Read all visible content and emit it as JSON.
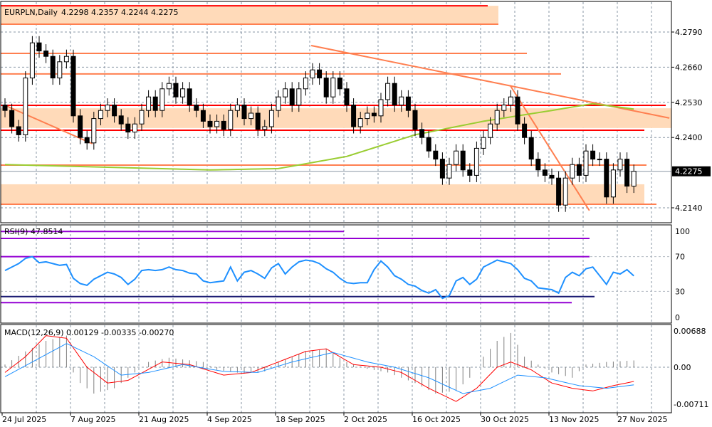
{
  "header": {
    "symbol": "EURPLN,Daily",
    "ohlc_text": "4.2298 4.2357 4.2244 4.2275"
  },
  "chart_data": [
    {
      "type": "candlestick",
      "title": "EURPLN,Daily",
      "y_ticks": [
        "4.2790",
        "4.2660",
        "4.2530",
        "4.2400",
        "4.2140"
      ],
      "ylim": [
        4.2078,
        4.2905
      ],
      "current_price": "4.2275",
      "x_labels": [
        "24 Jul 2025",
        "7 Aug 2025",
        "21 Aug 2025",
        "4 Sep 2025",
        "18 Sep 2025",
        "2 Oct 2025",
        "16 Oct 2025",
        "30 Oct 2025",
        "13 Nov 2025",
        "27 Nov 2025"
      ],
      "close": [
        4.25,
        4.244,
        4.241,
        4.262,
        4.275,
        4.272,
        4.27,
        4.262,
        4.268,
        4.27,
        4.248,
        4.24,
        4.238,
        4.247,
        4.25,
        4.252,
        4.248,
        4.245,
        4.242,
        4.245,
        4.25,
        4.255,
        4.25,
        4.258,
        4.26,
        4.255,
        4.258,
        4.252,
        4.25,
        4.246,
        4.244,
        4.246,
        4.243,
        4.25,
        4.252,
        4.247,
        4.249,
        4.243,
        4.244,
        4.25,
        4.255,
        4.258,
        4.252,
        4.258,
        4.262,
        4.265,
        4.262,
        4.255,
        4.262,
        4.258,
        4.252,
        4.244,
        4.247,
        4.249,
        4.248,
        4.254,
        4.26,
        4.252,
        4.255,
        4.25,
        4.243,
        4.24,
        4.235,
        4.232,
        4.225,
        4.23,
        4.235,
        4.228,
        4.226,
        4.236,
        4.24,
        4.245,
        4.25,
        4.252,
        4.255,
        4.245,
        4.24,
        4.232,
        4.228,
        4.226,
        4.225,
        4.215,
        4.225,
        4.23,
        4.226,
        4.235,
        4.232,
        4.232,
        4.218,
        4.228,
        4.232,
        4.222,
        4.2275
      ],
      "moving_average": [
        [
          0,
          4.23
        ],
        [
          30,
          4.228
        ],
        [
          40,
          4.2285
        ],
        [
          50,
          4.233
        ],
        [
          60,
          4.241
        ],
        [
          70,
          4.246
        ],
        [
          80,
          4.25
        ],
        [
          86,
          4.2525
        ],
        [
          92,
          4.2505
        ]
      ],
      "levels": [
        {
          "price": 4.2887,
          "color": "#ff0000"
        },
        {
          "price": 4.2819,
          "color": "#ff7f50"
        },
        {
          "price": 4.2711,
          "color": "#ff7f50"
        },
        {
          "price": 4.2635,
          "color": "#ff7f50"
        },
        {
          "price": 4.2519,
          "color": "#ff0000"
        },
        {
          "price": 4.2427,
          "color": "#ff0000"
        },
        {
          "price": 4.2298,
          "color": "#ff7f50"
        },
        {
          "price": 4.2153,
          "color": "#ff7f50"
        }
      ],
      "zones": [
        {
          "from": 4.2819,
          "to": 4.2887,
          "color": "#ffdab9"
        },
        {
          "from": 4.2435,
          "to": 4.2508,
          "color": "#ffdab9"
        },
        {
          "from": 4.2153,
          "to": 4.2227,
          "color": "#ffdab9"
        }
      ],
      "trendlines": [
        {
          "from": [
            0,
            4.2519
          ],
          "to": [
            12.8,
            4.2377
          ],
          "color": "#ff7f50"
        },
        {
          "from": [
            44.8,
            4.274
          ],
          "to": [
            97.2,
            4.2472
          ],
          "color": "#ff7f50"
        },
        {
          "from": [
            73.9,
            4.2593
          ],
          "to": [
            85.5,
            4.213
          ],
          "color": "#ff7f50"
        }
      ],
      "colors": {
        "ma": "#9acd32",
        "bull_body": "#ffffff",
        "bear_body": "#000000",
        "grid": "#708090"
      }
    },
    {
      "type": "line",
      "title": "RSI(9) 47.8514",
      "ylim": [
        0,
        100
      ],
      "y_ticks": [
        "100",
        "70",
        "30",
        "0"
      ],
      "values": [
        54,
        58,
        62,
        68,
        70,
        63,
        64,
        62,
        60,
        61,
        45,
        39,
        37,
        44,
        48,
        52,
        50,
        46,
        38,
        44,
        54,
        55,
        54,
        55,
        58,
        55,
        54,
        51,
        50,
        42,
        40,
        41,
        42,
        58,
        42,
        52,
        54,
        50,
        45,
        57,
        62,
        50,
        58,
        64,
        66,
        65,
        62,
        56,
        52,
        45,
        40,
        39,
        40,
        40,
        55,
        65,
        58,
        48,
        44,
        38,
        36,
        31,
        28,
        32,
        22,
        25,
        42,
        46,
        38,
        44,
        58,
        62,
        66,
        64,
        62,
        55,
        45,
        42,
        34,
        33,
        32,
        28,
        46,
        52,
        48,
        56,
        58,
        48,
        38,
        52,
        50,
        55,
        47.85
      ],
      "levels": [
        {
          "value": 99,
          "color": "#9400d3"
        },
        {
          "value": 91,
          "color": "#9400d3"
        },
        {
          "value": 70,
          "color": "#9400d3"
        },
        {
          "value": 24,
          "color": "#191970"
        },
        {
          "value": 17,
          "color": "#9400d3"
        }
      ],
      "color": "#1e90ff"
    },
    {
      "type": "bar+line",
      "title": "MACD(12,26,9) 0.00129 -0.00335 -0.00270",
      "ylim": [
        -0.00711,
        0.00688
      ],
      "y_ticks": [
        "0.00688",
        "0.00",
        "-0.00711"
      ],
      "histogram": [
        [
          0,
          0.0005
        ],
        [
          3,
          0.003
        ],
        [
          6,
          0.005
        ],
        [
          9,
          0.006
        ],
        [
          10,
          -0.001
        ],
        [
          11,
          -0.003
        ],
        [
          13,
          -0.005
        ],
        [
          16,
          -0.004
        ],
        [
          19,
          -0.001
        ],
        [
          21,
          0.001
        ],
        [
          24,
          0.0018
        ],
        [
          29,
          0.001
        ],
        [
          31,
          -0.0005
        ],
        [
          35,
          -0.0012
        ],
        [
          38,
          -0.0008
        ],
        [
          40,
          0.001
        ],
        [
          44,
          0.003
        ],
        [
          47,
          0.0035
        ],
        [
          50,
          0.001
        ],
        [
          53,
          -0.0003
        ],
        [
          56,
          -0.001
        ],
        [
          60,
          -0.003
        ],
        [
          63,
          -0.005
        ],
        [
          66,
          -0.0045
        ],
        [
          68,
          -0.002
        ],
        [
          70,
          0.002
        ],
        [
          72,
          0.005
        ],
        [
          74,
          0.0065
        ],
        [
          76,
          0.002
        ],
        [
          78,
          0.0005
        ],
        [
          80,
          -0.001
        ],
        [
          83,
          -0.002
        ],
        [
          85,
          0.0005
        ],
        [
          88,
          0.001
        ],
        [
          92,
          0.00129
        ]
      ],
      "red_line": [
        [
          0,
          -0.001
        ],
        [
          3,
          0.002
        ],
        [
          6,
          0.006
        ],
        [
          9,
          0.0055
        ],
        [
          12,
          0.0
        ],
        [
          15,
          -0.003
        ],
        [
          18,
          -0.0025
        ],
        [
          23,
          0.001
        ],
        [
          27,
          0.0005
        ],
        [
          32,
          -0.0015
        ],
        [
          36,
          -0.001
        ],
        [
          40,
          0.001
        ],
        [
          44,
          0.003
        ],
        [
          47,
          0.0035
        ],
        [
          51,
          0.0005
        ],
        [
          55,
          0.0
        ],
        [
          58,
          -0.001
        ],
        [
          62,
          -0.004
        ],
        [
          66,
          -0.0065
        ],
        [
          69,
          -0.004
        ],
        [
          72,
          0.0
        ],
        [
          74,
          0.001
        ],
        [
          77,
          -0.0005
        ],
        [
          80,
          -0.003
        ],
        [
          83,
          -0.004
        ],
        [
          86,
          -0.0045
        ],
        [
          89,
          -0.0035
        ],
        [
          92,
          -0.0027
        ]
      ],
      "blue_line": [
        [
          0,
          -0.0018
        ],
        [
          4,
          0.001
        ],
        [
          9,
          0.0045
        ],
        [
          13,
          0.002
        ],
        [
          17,
          -0.0015
        ],
        [
          21,
          -0.001
        ],
        [
          26,
          0.0005
        ],
        [
          32,
          -0.0008
        ],
        [
          37,
          -0.001
        ],
        [
          42,
          0.001
        ],
        [
          48,
          0.0028
        ],
        [
          53,
          0.001
        ],
        [
          57,
          0.0
        ],
        [
          62,
          -0.002
        ],
        [
          67,
          -0.005
        ],
        [
          71,
          -0.004
        ],
        [
          75,
          -0.0015
        ],
        [
          79,
          -0.002
        ],
        [
          84,
          -0.0035
        ],
        [
          88,
          -0.004
        ],
        [
          92,
          -0.00335
        ]
      ],
      "colors": {
        "histogram": "#808080",
        "red": "#ff0000",
        "blue": "#1e90ff"
      }
    }
  ]
}
